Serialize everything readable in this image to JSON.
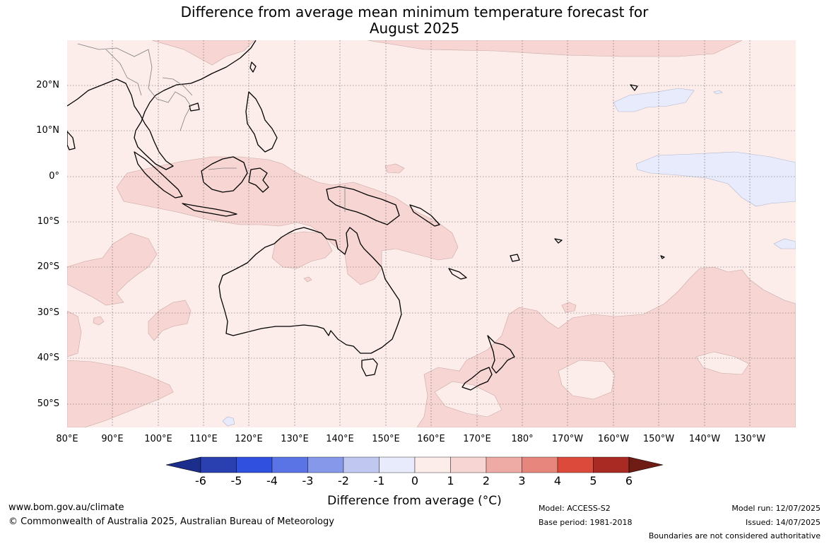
{
  "title_line1": "Difference from average mean minimum temperature forecast for",
  "title_line2": "August 2025",
  "axes": {
    "latitude_labels": [
      "20°N",
      "10°N",
      "0°",
      "10°S",
      "20°S",
      "30°S",
      "40°S",
      "50°S"
    ],
    "longitude_labels": [
      "80°E",
      "90°E",
      "100°E",
      "110°E",
      "120°E",
      "130°E",
      "140°E",
      "150°E",
      "160°E",
      "170°E",
      "180°",
      "170°W",
      "160°W",
      "150°W",
      "140°W",
      "130°W"
    ]
  },
  "colorbar": {
    "ticks": [
      "-6",
      "-5",
      "-4",
      "-3",
      "-2",
      "-1",
      "0",
      "1",
      "2",
      "3",
      "4",
      "5",
      "6"
    ],
    "colors": [
      "#1c2e8c",
      "#2a3fb0",
      "#3050e0",
      "#5a74e6",
      "#8598ea",
      "#c0c8f2",
      "#e8ebfb",
      "#fcecea",
      "#f6d5d3",
      "#eeaaa4",
      "#e6867c",
      "#dc4a3c",
      "#a82a22",
      "#6e1c14"
    ],
    "label": "Difference from average (°C)"
  },
  "footer": {
    "website": "www.bom.gov.au/climate",
    "copyright": "© Commonwealth of Australia 2025, Australian Bureau of Meteorology",
    "model": "Model: ACCESS-S2",
    "base_period": "Base period: 1981-2018",
    "model_run": "Model run: 12/07/2025",
    "issued": "Issued: 14/07/2025",
    "disclaimer": "Boundaries are not considered authoritative"
  },
  "colors": {
    "background_field": "#fcecea",
    "warm_anomaly": "#f6d5d3",
    "cool_anomaly": "#e8ebfb",
    "coastline": "#000000",
    "border": "#808080"
  }
}
